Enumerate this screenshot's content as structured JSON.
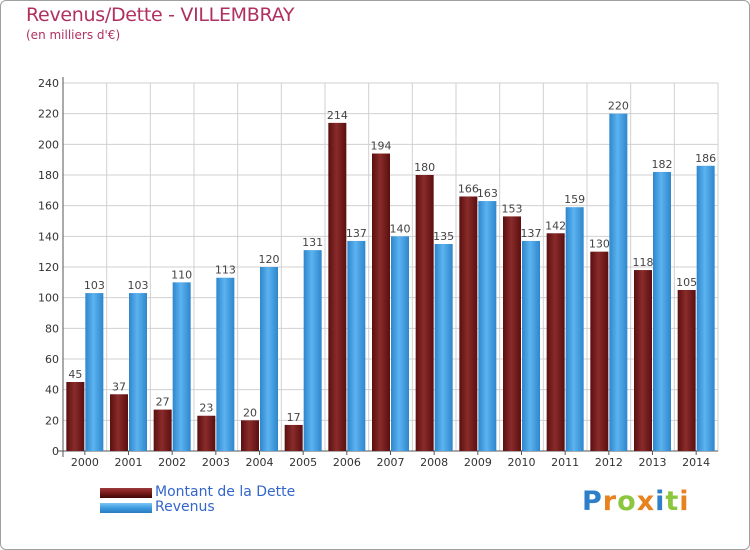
{
  "chart_data": {
    "type": "bar",
    "title": "Revenus/Dette - VILLEMBRAY",
    "subtitle": "(en milliers d'€)",
    "categories": [
      "2000",
      "2001",
      "2002",
      "2003",
      "2004",
      "2005",
      "2006",
      "2007",
      "2008",
      "2009",
      "2010",
      "2011",
      "2012",
      "2013",
      "2014"
    ],
    "series": [
      {
        "name": "Montant de la Dette",
        "color": "#7a1a1a",
        "values": [
          45,
          37,
          27,
          23,
          20,
          17,
          214,
          194,
          180,
          166,
          153,
          142,
          130,
          118,
          105
        ]
      },
      {
        "name": "Revenus",
        "color": "#3d9be0",
        "values": [
          103,
          103,
          110,
          113,
          120,
          131,
          137,
          140,
          135,
          163,
          137,
          159,
          220,
          182,
          186
        ]
      }
    ],
    "ylim": [
      0,
      240
    ],
    "yticks": [
      0,
      20,
      40,
      60,
      80,
      100,
      120,
      140,
      160,
      180,
      200,
      220,
      240
    ],
    "grid": true,
    "legend_placement": "bottom-left"
  },
  "logo": {
    "text": "Proxiti",
    "letters": [
      {
        "ch": "P",
        "color": "#2c7fc8"
      },
      {
        "ch": "r",
        "color": "#e8821e"
      },
      {
        "ch": "o",
        "color": "#8cc63f"
      },
      {
        "ch": "x",
        "color": "#e8821e"
      },
      {
        "ch": "i",
        "color": "#2c7fc8"
      },
      {
        "ch": "t",
        "color": "#8cc63f"
      },
      {
        "ch": "i",
        "color": "#e8821e"
      }
    ]
  }
}
